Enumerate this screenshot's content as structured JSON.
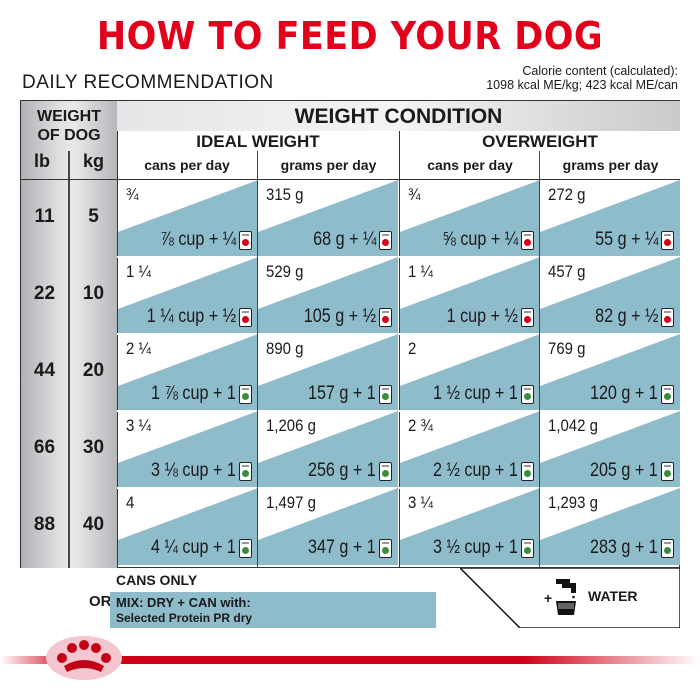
{
  "title": "HOW TO FEED YOUR DOG",
  "daily_label": "DAILY RECOMMENDATION",
  "calorie": {
    "line1": "Calorie content (calculated):",
    "line2": "1098 kcal ME/kg; 423 kcal ME/can"
  },
  "headers": {
    "weight_of_dog_1": "WEIGHT",
    "weight_of_dog_2": "OF DOG",
    "lb": "lb",
    "kg": "kg",
    "weight_condition": "WEIGHT CONDITION",
    "ideal": "IDEAL WEIGHT",
    "overweight": "OVERWEIGHT",
    "cans1": "cans per day",
    "grams1": "grams per day",
    "cans2": "cans per day",
    "grams2": "grams per day"
  },
  "rows": [
    {
      "lb": "11",
      "kg": "5",
      "ideal_cans_top": "¾",
      "ideal_cans_bot": "⅞ cup + ¼",
      "ideal_grams_top": "315 g",
      "ideal_grams_bot": "68 g + ¼",
      "over_cans_top": "¾",
      "over_cans_bot": "⅝ cup + ¼",
      "over_grams_top": "272 g",
      "over_grams_bot": "55 g + ¼"
    },
    {
      "lb": "22",
      "kg": "10",
      "ideal_cans_top": "1 ¼",
      "ideal_cans_bot": "1 ¼ cup + ½",
      "ideal_grams_top": "529 g",
      "ideal_grams_bot": "105 g + ½",
      "over_cans_top": "1 ¼",
      "over_cans_bot": "1 cup + ½",
      "over_grams_top": "457 g",
      "over_grams_bot": "82 g + ½"
    },
    {
      "lb": "44",
      "kg": "20",
      "ideal_cans_top": "2 ¼",
      "ideal_cans_bot": "1 ⅞ cup + 1",
      "ideal_grams_top": "890 g",
      "ideal_grams_bot": "157 g + 1",
      "over_cans_top": "2",
      "over_cans_bot": "1 ½ cup + 1",
      "over_grams_top": "769 g",
      "over_grams_bot": "120 g + 1"
    },
    {
      "lb": "66",
      "kg": "30",
      "ideal_cans_top": "3 ¼",
      "ideal_cans_bot": "3 ⅛ cup + 1",
      "ideal_grams_top": "1,206 g",
      "ideal_grams_bot": "256 g + 1",
      "over_cans_top": "2 ¾",
      "over_cans_bot": "2 ½ cup + 1",
      "over_grams_top": "1,042 g",
      "over_grams_bot": "205 g + 1"
    },
    {
      "lb": "88",
      "kg": "40",
      "ideal_cans_top": "4",
      "ideal_cans_bot": "4 ¼ cup + 1",
      "ideal_grams_top": "1,497 g",
      "ideal_grams_bot": "347 g + 1",
      "over_cans_top": "3 ¼",
      "over_cans_bot": "3 ½ cup + 1",
      "over_grams_top": "1,293 g",
      "over_grams_bot": "283 g + 1"
    }
  ],
  "footer": {
    "cans_only": "CANS ONLY",
    "or": "OR",
    "mix": "MIX: DRY + CAN with:",
    "product": "Selected Protein PR dry",
    "water": "WATER",
    "plus": "+"
  },
  "colors": {
    "brand_red": "#e2001a",
    "cell_blue": "#8fbccb"
  },
  "icons": [
    "can-icon",
    "water-tap-icon",
    "royal-canin-crown-logo"
  ]
}
